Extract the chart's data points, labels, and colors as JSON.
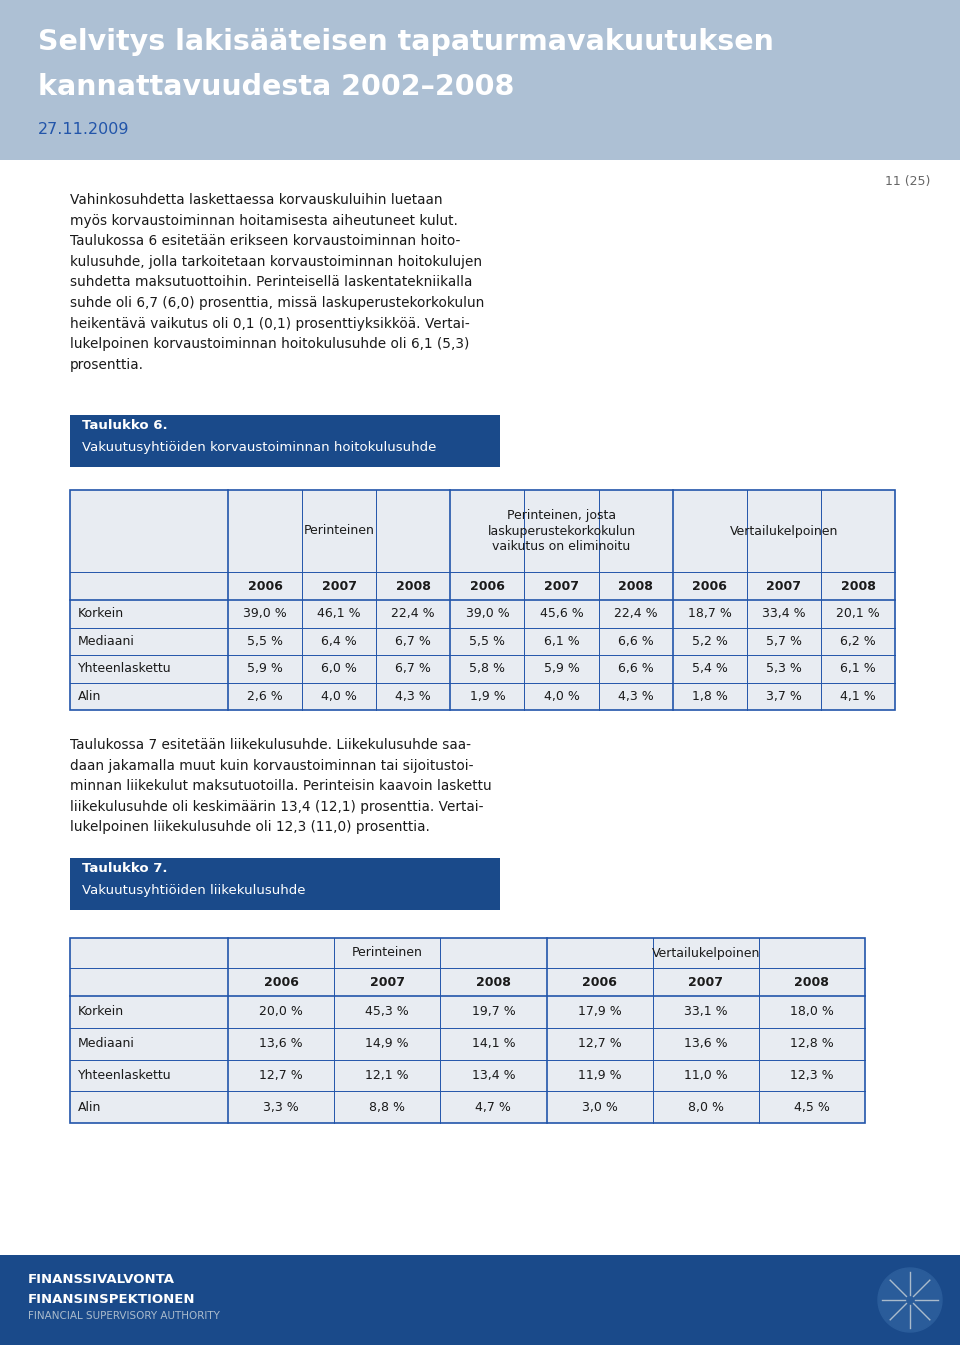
{
  "title_line1": "Selvitys lakisääteisen tapaturmavakuutuksen",
  "title_line2": "kannattavuudesta 2002–2008",
  "subtitle": "27.11.2009",
  "page_number": "11 (25)",
  "header_bg": "#adc0d4",
  "header_title_color": "#ffffff",
  "header_subtitle_color": "#2255aa",
  "body_bg": "#ffffff",
  "footer_bg": "#1a4a8a",
  "footer_text1": "FINANSSIVALVONTA",
  "footer_text2": "FINANSINSPEKTIONEN",
  "footer_text3": "FINANCIAL SUPERVISORY AUTHORITY",
  "body_text": "Vahinkosuhdetta laskettaessa korvauskuluihin luetaan\nmyös korvaustoiminnan hoitamisesta aiheutuneet kulut.\nTaulukossa 6 esitetään erikseen korvaustoiminnan hoito-\nkulusuhde, jolla tarkoitetaan korvaustoiminnan hoitokulujen\nsuhdetta maksutuottoihin. Perinteisellä laskentatekniikalla\nsuhde oli 6,7 (6,0) prosenttia, missä laskuperustekorkokulun\nheikentävä vaikutus oli 0,1 (0,1) prosenttiyksikköä. Vertai-\nlukelpoinen korvaustoiminnan hoitokulusuhde oli 6,1 (5,3)\nprosenttia.",
  "table6_label": "Taulukko 6.",
  "table6_subtitle": "Vakuutusyhtiöiden korvaustoiminnan hoitokulusuhde",
  "table6_col_groups": [
    "Perinteinen",
    "Perinteinen, josta\nlaskuperustekorkokulun\nvaikutus on eliminoitu",
    "Vertailukelpoinen"
  ],
  "table6_years": [
    "2006",
    "2007",
    "2008",
    "2006",
    "2007",
    "2008",
    "2006",
    "2007",
    "2008"
  ],
  "table6_rows": [
    [
      "Korkein",
      "39,0 %",
      "46,1 %",
      "22,4 %",
      "39,0 %",
      "45,6 %",
      "22,4 %",
      "18,7 %",
      "33,4 %",
      "20,1 %"
    ],
    [
      "Mediaani",
      "5,5 %",
      "6,4 %",
      "6,7 %",
      "5,5 %",
      "6,1 %",
      "6,6 %",
      "5,2 %",
      "5,7 %",
      "6,2 %"
    ],
    [
      "Yhteenlaskettu",
      "5,9 %",
      "6,0 %",
      "6,7 %",
      "5,8 %",
      "5,9 %",
      "6,6 %",
      "5,4 %",
      "5,3 %",
      "6,1 %"
    ],
    [
      "Alin",
      "2,6 %",
      "4,0 %",
      "4,3 %",
      "1,9 %",
      "4,0 %",
      "4,3 %",
      "1,8 %",
      "3,7 %",
      "4,1 %"
    ]
  ],
  "body_text2": "Taulukossa 7 esitetään liikekulusuhde. Liikekulusuhde saa-\ndaan jakamalla muut kuin korvaustoiminnan tai sijoitustoi-\nminnan liikekulut maksutuotoilla. Perinteisin kaavoin laskettu\nliikekulusuhde oli keskimäärin 13,4 (12,1) prosenttia. Vertai-\nlukelpoinen liikekulusuhde oli 12,3 (11,0) prosenttia.",
  "table7_label": "Taulukko 7.",
  "table7_subtitle": "Vakuutusyhtiöiden liikekulusuhde",
  "table7_col_groups": [
    "Perinteinen",
    "Vertailukelpoinen"
  ],
  "table7_years": [
    "2006",
    "2007",
    "2008",
    "2006",
    "2007",
    "2008"
  ],
  "table7_rows": [
    [
      "Korkein",
      "20,0 %",
      "45,3 %",
      "19,7 %",
      "17,9 %",
      "33,1 %",
      "18,0 %"
    ],
    [
      "Mediaani",
      "13,6 %",
      "14,9 %",
      "14,1 %",
      "12,7 %",
      "13,6 %",
      "12,8 %"
    ],
    [
      "Yhteenlaskettu",
      "12,7 %",
      "12,1 %",
      "13,4 %",
      "11,9 %",
      "11,0 %",
      "12,3 %"
    ],
    [
      "Alin",
      "3,3 %",
      "8,8 %",
      "4,7 %",
      "3,0 %",
      "8,0 %",
      "4,5 %"
    ]
  ],
  "table_bg": "#e8ecf2",
  "table_border": "#2255aa",
  "text_color": "#1a1a1a",
  "table_label_bg": "#1a4a8a",
  "table_label_color": "#ffffff"
}
